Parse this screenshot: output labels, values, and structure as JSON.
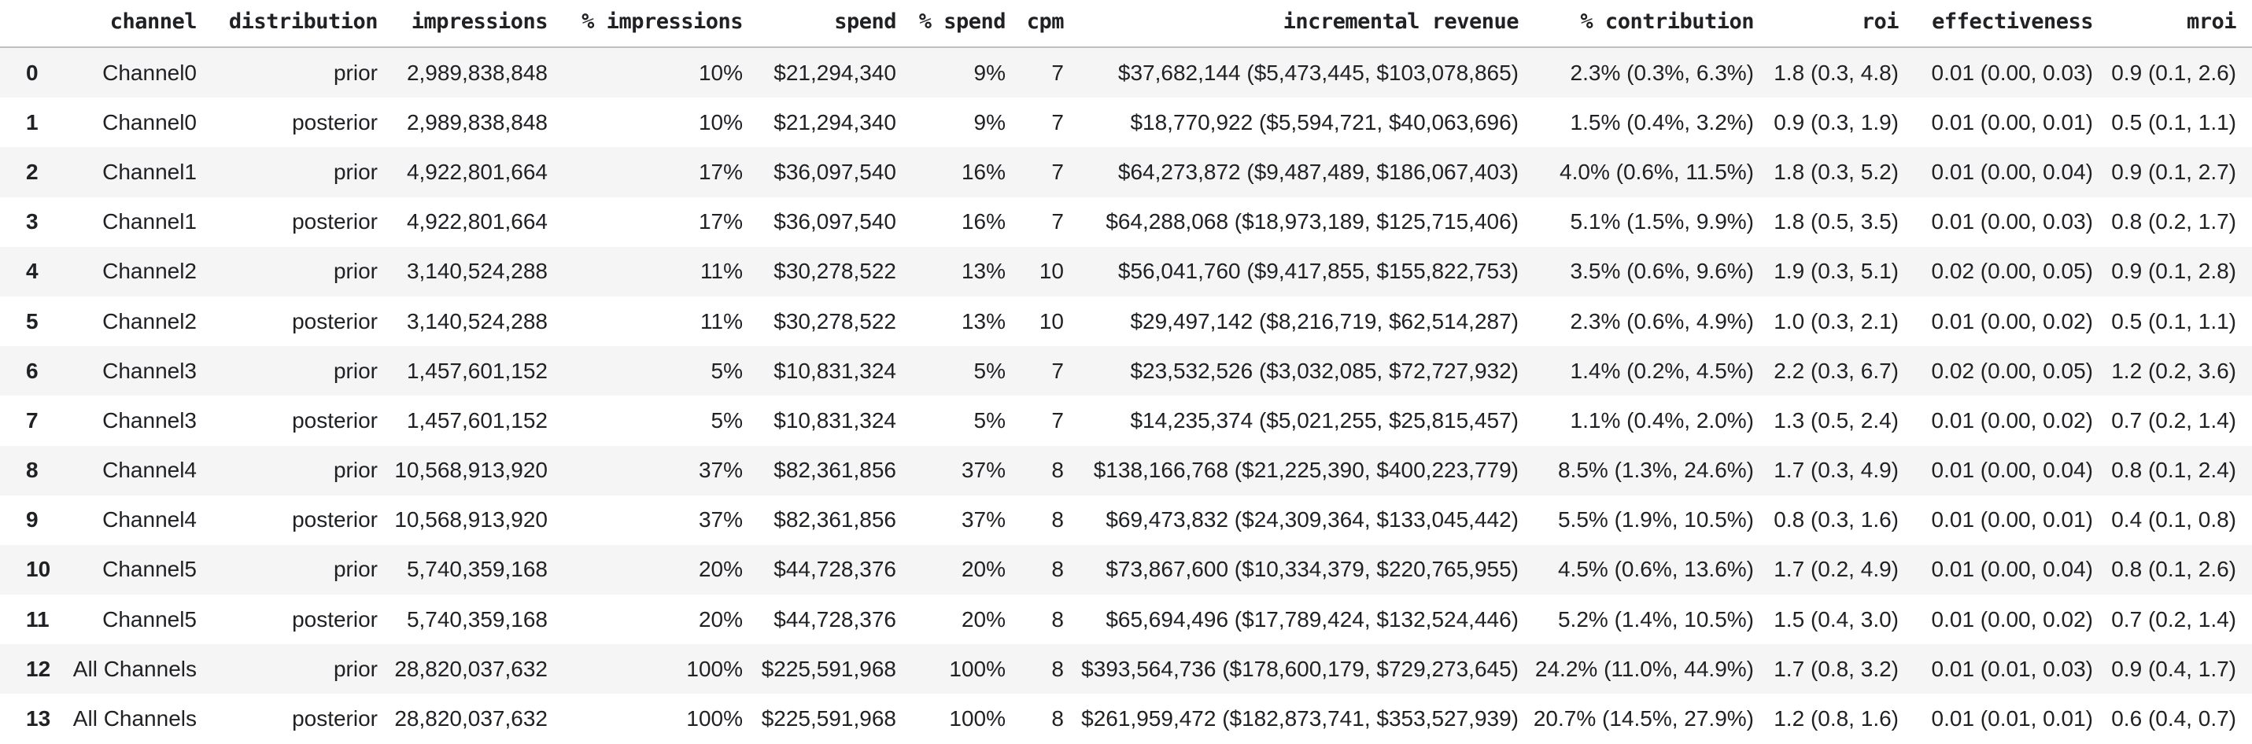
{
  "colors": {
    "background": "#ffffff",
    "row_stripe": "#f5f5f5",
    "text": "#202124",
    "header_rule": "#c0c0c0"
  },
  "table": {
    "columns": [
      "",
      "channel",
      "distribution",
      "impressions",
      "% impressions",
      "spend",
      "% spend",
      "cpm",
      "incremental revenue",
      "% contribution",
      "roi",
      "effectiveness",
      "mroi"
    ],
    "field_order": [
      "index",
      "channel",
      "distribution",
      "impressions",
      "pct_impressions",
      "spend",
      "pct_spend",
      "cpm",
      "incremental_revenue",
      "pct_contribution",
      "roi",
      "effectiveness",
      "mroi"
    ],
    "rows": [
      {
        "index": "0",
        "channel": "Channel0",
        "distribution": "prior",
        "impressions": "2,989,838,848",
        "pct_impressions": "10%",
        "spend": "$21,294,340",
        "pct_spend": "9%",
        "cpm": "7",
        "incremental_revenue": "$37,682,144 ($5,473,445, $103,078,865)",
        "pct_contribution": "2.3% (0.3%, 6.3%)",
        "roi": "1.8 (0.3, 4.8)",
        "effectiveness": "0.01 (0.00, 0.03)",
        "mroi": "0.9 (0.1, 2.6)"
      },
      {
        "index": "1",
        "channel": "Channel0",
        "distribution": "posterior",
        "impressions": "2,989,838,848",
        "pct_impressions": "10%",
        "spend": "$21,294,340",
        "pct_spend": "9%",
        "cpm": "7",
        "incremental_revenue": "$18,770,922 ($5,594,721, $40,063,696)",
        "pct_contribution": "1.5% (0.4%, 3.2%)",
        "roi": "0.9 (0.3, 1.9)",
        "effectiveness": "0.01 (0.00, 0.01)",
        "mroi": "0.5 (0.1, 1.1)"
      },
      {
        "index": "2",
        "channel": "Channel1",
        "distribution": "prior",
        "impressions": "4,922,801,664",
        "pct_impressions": "17%",
        "spend": "$36,097,540",
        "pct_spend": "16%",
        "cpm": "7",
        "incremental_revenue": "$64,273,872 ($9,487,489, $186,067,403)",
        "pct_contribution": "4.0% (0.6%, 11.5%)",
        "roi": "1.8 (0.3, 5.2)",
        "effectiveness": "0.01 (0.00, 0.04)",
        "mroi": "0.9 (0.1, 2.7)"
      },
      {
        "index": "3",
        "channel": "Channel1",
        "distribution": "posterior",
        "impressions": "4,922,801,664",
        "pct_impressions": "17%",
        "spend": "$36,097,540",
        "pct_spend": "16%",
        "cpm": "7",
        "incremental_revenue": "$64,288,068 ($18,973,189, $125,715,406)",
        "pct_contribution": "5.1% (1.5%, 9.9%)",
        "roi": "1.8 (0.5, 3.5)",
        "effectiveness": "0.01 (0.00, 0.03)",
        "mroi": "0.8 (0.2, 1.7)"
      },
      {
        "index": "4",
        "channel": "Channel2",
        "distribution": "prior",
        "impressions": "3,140,524,288",
        "pct_impressions": "11%",
        "spend": "$30,278,522",
        "pct_spend": "13%",
        "cpm": "10",
        "incremental_revenue": "$56,041,760 ($9,417,855, $155,822,753)",
        "pct_contribution": "3.5% (0.6%, 9.6%)",
        "roi": "1.9 (0.3, 5.1)",
        "effectiveness": "0.02 (0.00, 0.05)",
        "mroi": "0.9 (0.1, 2.8)"
      },
      {
        "index": "5",
        "channel": "Channel2",
        "distribution": "posterior",
        "impressions": "3,140,524,288",
        "pct_impressions": "11%",
        "spend": "$30,278,522",
        "pct_spend": "13%",
        "cpm": "10",
        "incremental_revenue": "$29,497,142 ($8,216,719, $62,514,287)",
        "pct_contribution": "2.3% (0.6%, 4.9%)",
        "roi": "1.0 (0.3, 2.1)",
        "effectiveness": "0.01 (0.00, 0.02)",
        "mroi": "0.5 (0.1, 1.1)"
      },
      {
        "index": "6",
        "channel": "Channel3",
        "distribution": "prior",
        "impressions": "1,457,601,152",
        "pct_impressions": "5%",
        "spend": "$10,831,324",
        "pct_spend": "5%",
        "cpm": "7",
        "incremental_revenue": "$23,532,526 ($3,032,085, $72,727,932)",
        "pct_contribution": "1.4% (0.2%, 4.5%)",
        "roi": "2.2 (0.3, 6.7)",
        "effectiveness": "0.02 (0.00, 0.05)",
        "mroi": "1.2 (0.2, 3.6)"
      },
      {
        "index": "7",
        "channel": "Channel3",
        "distribution": "posterior",
        "impressions": "1,457,601,152",
        "pct_impressions": "5%",
        "spend": "$10,831,324",
        "pct_spend": "5%",
        "cpm": "7",
        "incremental_revenue": "$14,235,374 ($5,021,255, $25,815,457)",
        "pct_contribution": "1.1% (0.4%, 2.0%)",
        "roi": "1.3 (0.5, 2.4)",
        "effectiveness": "0.01 (0.00, 0.02)",
        "mroi": "0.7 (0.2, 1.4)"
      },
      {
        "index": "8",
        "channel": "Channel4",
        "distribution": "prior",
        "impressions": "10,568,913,920",
        "pct_impressions": "37%",
        "spend": "$82,361,856",
        "pct_spend": "37%",
        "cpm": "8",
        "incremental_revenue": "$138,166,768 ($21,225,390, $400,223,779)",
        "pct_contribution": "8.5% (1.3%, 24.6%)",
        "roi": "1.7 (0.3, 4.9)",
        "effectiveness": "0.01 (0.00, 0.04)",
        "mroi": "0.8 (0.1, 2.4)"
      },
      {
        "index": "9",
        "channel": "Channel4",
        "distribution": "posterior",
        "impressions": "10,568,913,920",
        "pct_impressions": "37%",
        "spend": "$82,361,856",
        "pct_spend": "37%",
        "cpm": "8",
        "incremental_revenue": "$69,473,832 ($24,309,364, $133,045,442)",
        "pct_contribution": "5.5% (1.9%, 10.5%)",
        "roi": "0.8 (0.3, 1.6)",
        "effectiveness": "0.01 (0.00, 0.01)",
        "mroi": "0.4 (0.1, 0.8)"
      },
      {
        "index": "10",
        "channel": "Channel5",
        "distribution": "prior",
        "impressions": "5,740,359,168",
        "pct_impressions": "20%",
        "spend": "$44,728,376",
        "pct_spend": "20%",
        "cpm": "8",
        "incremental_revenue": "$73,867,600 ($10,334,379, $220,765,955)",
        "pct_contribution": "4.5% (0.6%, 13.6%)",
        "roi": "1.7 (0.2, 4.9)",
        "effectiveness": "0.01 (0.00, 0.04)",
        "mroi": "0.8 (0.1, 2.6)"
      },
      {
        "index": "11",
        "channel": "Channel5",
        "distribution": "posterior",
        "impressions": "5,740,359,168",
        "pct_impressions": "20%",
        "spend": "$44,728,376",
        "pct_spend": "20%",
        "cpm": "8",
        "incremental_revenue": "$65,694,496 ($17,789,424, $132,524,446)",
        "pct_contribution": "5.2% (1.4%, 10.5%)",
        "roi": "1.5 (0.4, 3.0)",
        "effectiveness": "0.01 (0.00, 0.02)",
        "mroi": "0.7 (0.2, 1.4)"
      },
      {
        "index": "12",
        "channel": "All Channels",
        "distribution": "prior",
        "impressions": "28,820,037,632",
        "pct_impressions": "100%",
        "spend": "$225,591,968",
        "pct_spend": "100%",
        "cpm": "8",
        "incremental_revenue": "$393,564,736 ($178,600,179, $729,273,645)",
        "pct_contribution": "24.2% (11.0%, 44.9%)",
        "roi": "1.7 (0.8, 3.2)",
        "effectiveness": "0.01 (0.01, 0.03)",
        "mroi": "0.9 (0.4, 1.7)"
      },
      {
        "index": "13",
        "channel": "All Channels",
        "distribution": "posterior",
        "impressions": "28,820,037,632",
        "pct_impressions": "100%",
        "spend": "$225,591,968",
        "pct_spend": "100%",
        "cpm": "8",
        "incremental_revenue": "$261,959,472 ($182,873,741, $353,527,939)",
        "pct_contribution": "20.7% (14.5%, 27.9%)",
        "roi": "1.2 (0.8, 1.6)",
        "effectiveness": "0.01 (0.01, 0.01)",
        "mroi": "0.6 (0.4, 0.7)"
      }
    ]
  }
}
